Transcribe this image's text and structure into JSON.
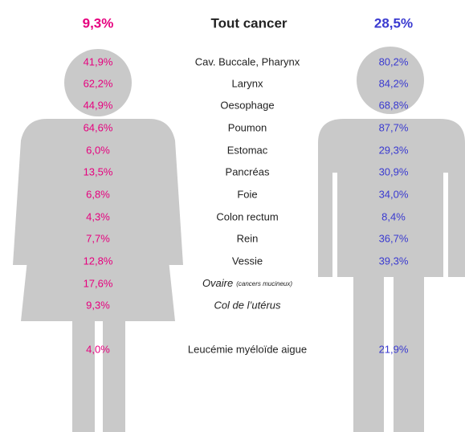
{
  "header": {
    "women_total": "9,3%",
    "title": "Tout cancer",
    "men_total": "28,5%"
  },
  "rows": [
    {
      "label": "Cav. Buccale, Pharynx",
      "women": "41,9%",
      "men": "80,2%"
    },
    {
      "label": "Larynx",
      "women": "62,2%",
      "men": "84,2%"
    },
    {
      "label": "Oesophage",
      "women": "44,9%",
      "men": "68,8%"
    },
    {
      "label": "Poumon",
      "women": "64,6%",
      "men": "87,7%"
    },
    {
      "label": "Estomac",
      "women": "6,0%",
      "men": "29,3%"
    },
    {
      "label": "Pancréas",
      "women": "13,5%",
      "men": "30,9%"
    },
    {
      "label": "Foie",
      "women": "6,8%",
      "men": "34,0%"
    },
    {
      "label": "Colon rectum",
      "women": "4,3%",
      "men": "8,4%"
    },
    {
      "label": "Rein",
      "women": "7,7%",
      "men": "36,7%"
    },
    {
      "label": "Vessie",
      "women": "12,8%",
      "men": "39,3%"
    },
    {
      "label": "Ovaire",
      "note": "(cancers mucineux)",
      "women": "17,6%",
      "men": null
    },
    {
      "label": "Col de l’utérus",
      "women": "9,3%",
      "men": null
    },
    {
      "label": "Leucémie myéloïde aigue",
      "women": "4,0%",
      "men": "21,9%"
    }
  ]
}
